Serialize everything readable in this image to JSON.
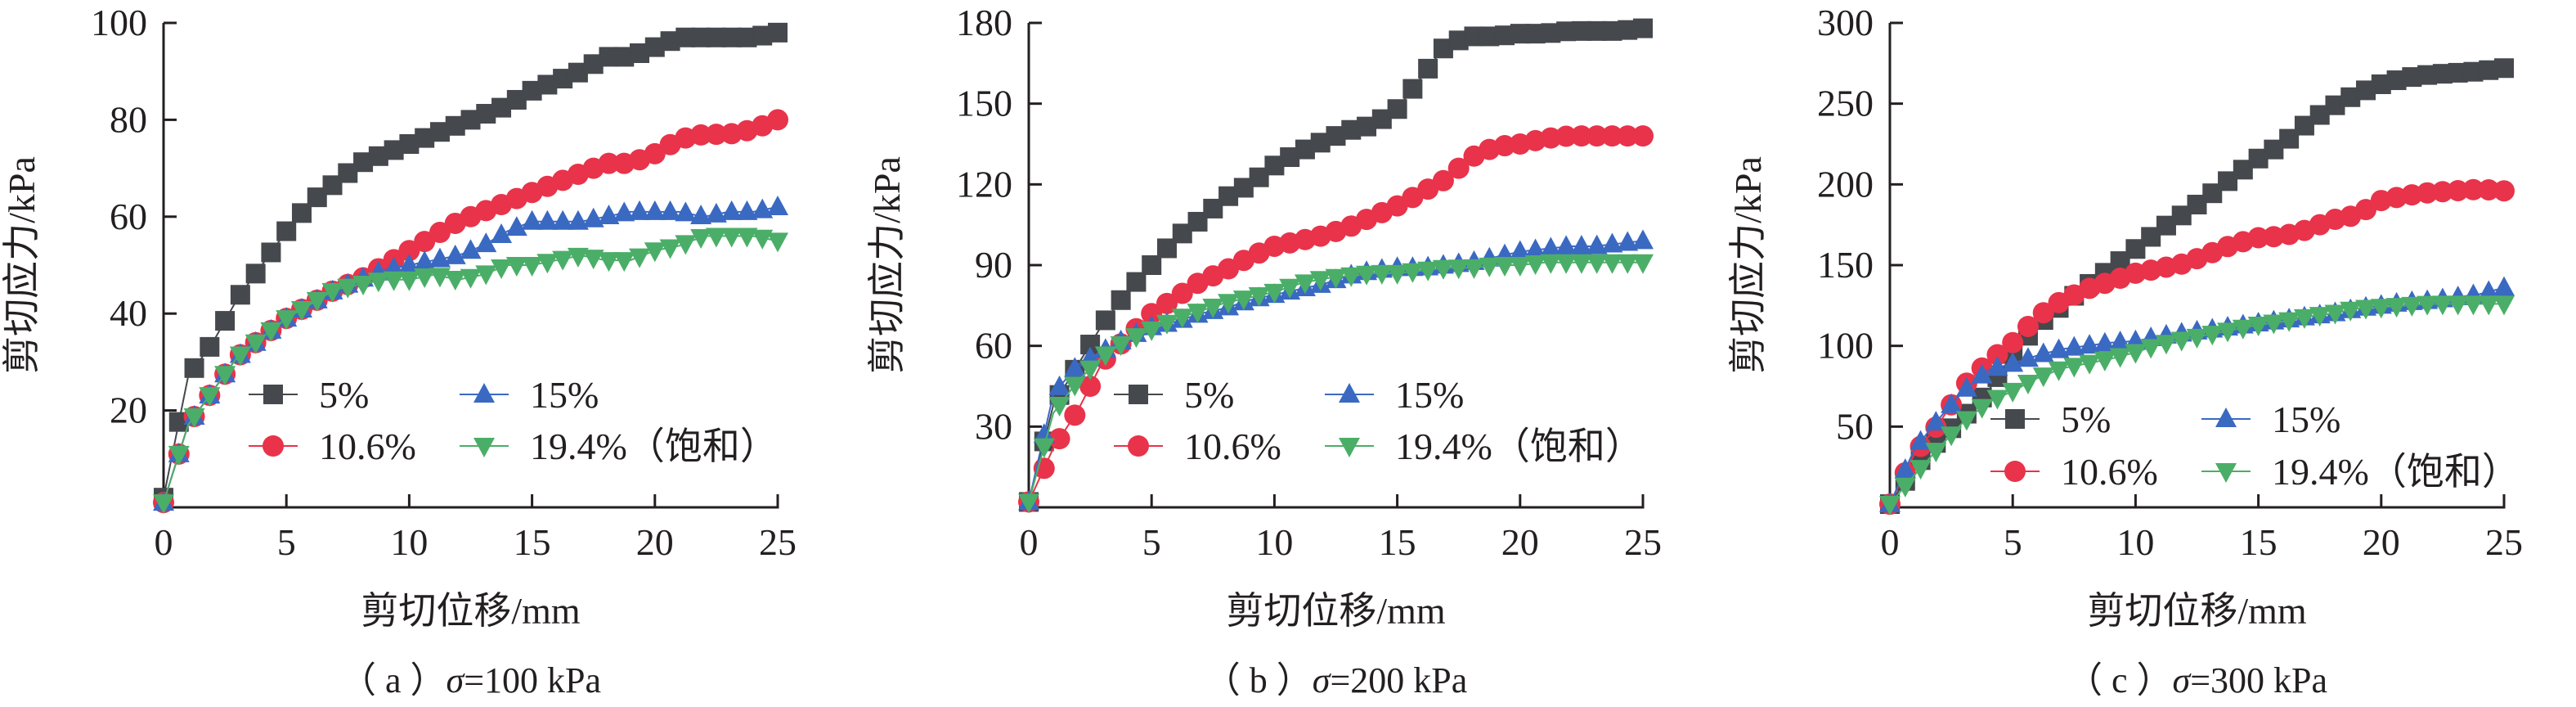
{
  "colors": {
    "s5": "#45484c",
    "s10": "#e8334a",
    "s15": "#3a69c2",
    "s19": "#4bae68",
    "axis": "#231f20"
  },
  "chart_data": [
    {
      "type": "line",
      "caption_prefix": "（ a ）",
      "caption_sigma": "σ",
      "caption_suffix": "=100 kPa",
      "xlabel": "剪切位移/mm",
      "ylabel": "剪切应力/kPa",
      "xlim": [
        0,
        25
      ],
      "ylim": [
        0,
        100
      ],
      "xticks": [
        "0",
        "5",
        "10",
        "15",
        "20",
        "25"
      ],
      "yticks": [
        "20",
        "40",
        "60",
        "80",
        "100"
      ],
      "grid": false,
      "legend": "center-bottom inside, 2 columns",
      "x": [
        0,
        1,
        2,
        3,
        4,
        5,
        6,
        7,
        8,
        9,
        10,
        11,
        12,
        13,
        14,
        15,
        16,
        17,
        18,
        19,
        20,
        21,
        22,
        23,
        24,
        25
      ],
      "series": [
        {
          "name": "5%",
          "marker": "square",
          "values": [
            2,
            27,
            34,
            43,
            50,
            57,
            63,
            67,
            71,
            73,
            75,
            77,
            79,
            81,
            83,
            86,
            88,
            90,
            93,
            93,
            95,
            97,
            97,
            97,
            97,
            98
          ]
        },
        {
          "name": "10.6%",
          "marker": "circle",
          "values": [
            1,
            17,
            24,
            31,
            35,
            39,
            42,
            45,
            47,
            50,
            53,
            56,
            59,
            61,
            63,
            65,
            67,
            69,
            71,
            71,
            73,
            76,
            77,
            77,
            78,
            80
          ]
        },
        {
          "name": "15%",
          "marker": "triangle-up",
          "values": [
            1,
            17,
            24,
            31,
            35,
            39,
            42,
            45,
            47,
            49,
            50,
            51,
            52,
            54,
            57,
            59,
            59,
            59,
            60,
            61,
            61,
            61,
            60,
            61,
            61,
            62
          ]
        },
        {
          "name": "19.4%（饱和）",
          "marker": "triangle-down",
          "values": [
            1,
            17,
            24,
            31,
            35,
            39,
            42,
            45,
            46,
            47,
            47,
            48,
            47,
            48,
            50,
            50,
            51,
            52,
            51,
            51,
            53,
            54,
            56,
            56,
            56,
            55
          ]
        }
      ]
    },
    {
      "type": "line",
      "caption_prefix": "（ b ）",
      "caption_sigma": "σ",
      "caption_suffix": "=200 kPa",
      "xlabel": "剪切位移/mm",
      "ylabel": "剪切应力/kPa",
      "xlim": [
        0,
        25
      ],
      "ylim": [
        0,
        180
      ],
      "xticks": [
        "0",
        "5",
        "10",
        "15",
        "20",
        "25"
      ],
      "yticks": [
        "30",
        "60",
        "90",
        "120",
        "150",
        "180"
      ],
      "grid": false,
      "legend": "center-bottom inside, 2 columns",
      "x": [
        0,
        1,
        2,
        3,
        4,
        5,
        6,
        7,
        8,
        9,
        10,
        11,
        12,
        13,
        14,
        15,
        16,
        17,
        18,
        19,
        20,
        21,
        22,
        23,
        24,
        25
      ],
      "series": [
        {
          "name": "5%",
          "marker": "square",
          "values": [
            2,
            38,
            53,
            68,
            80,
            90,
            100,
            107,
            115,
            120,
            127,
            132,
            136,
            140,
            142,
            148,
            160,
            172,
            175,
            175,
            176,
            176,
            177,
            177,
            177,
            178
          ]
        },
        {
          "name": "10.6%",
          "marker": "circle",
          "values": [
            2,
            22,
            36,
            54,
            63,
            72,
            78,
            84,
            88,
            93,
            97,
            99,
            101,
            104,
            108,
            112,
            117,
            122,
            130,
            134,
            135,
            137,
            138,
            138,
            138,
            138
          ]
        },
        {
          "name": "15%",
          "marker": "triangle-up",
          "values": [
            2,
            42,
            53,
            58,
            63,
            67,
            69,
            72,
            74,
            77,
            79,
            81,
            83,
            86,
            88,
            89,
            89,
            90,
            91,
            93,
            95,
            96,
            97,
            97,
            98,
            99
          ]
        },
        {
          "name": "19.4%（饱和）",
          "marker": "triangle-down",
          "values": [
            2,
            35,
            47,
            56,
            62,
            66,
            70,
            73,
            76,
            78,
            80,
            83,
            85,
            86,
            87,
            87,
            88,
            89,
            89,
            90,
            90,
            91,
            91,
            91,
            91,
            91
          ]
        }
      ]
    },
    {
      "type": "line",
      "caption_prefix": "（ c ）",
      "caption_sigma": "σ",
      "caption_suffix": "=300 kPa",
      "xlabel": "剪切位移/mm",
      "ylabel": "剪切应力/kPa",
      "xlim": [
        0,
        25
      ],
      "ylim": [
        0,
        300
      ],
      "xticks": [
        "0",
        "5",
        "10",
        "15",
        "20",
        "25"
      ],
      "yticks": [
        "50",
        "100",
        "150",
        "200",
        "250",
        "300"
      ],
      "grid": false,
      "legend": "center-bottom inside, 2 columns",
      "x": [
        0,
        1,
        2,
        3,
        4,
        5,
        6,
        7,
        8,
        9,
        10,
        11,
        12,
        13,
        14,
        15,
        16,
        17,
        18,
        19,
        20,
        21,
        22,
        23,
        24,
        25
      ],
      "series": [
        {
          "name": "5%",
          "marker": "square",
          "values": [
            2,
            25,
            42,
            56,
            72,
            95,
            113,
            125,
            137,
            148,
            160,
            172,
            182,
            193,
            205,
            216,
            225,
            238,
            248,
            256,
            262,
            266,
            268,
            269,
            270,
            272
          ]
        },
        {
          "name": "10.6%",
          "marker": "circle",
          "values": [
            2,
            33,
            52,
            75,
            90,
            102,
            118,
            128,
            135,
            140,
            145,
            148,
            151,
            157,
            163,
            167,
            168,
            172,
            178,
            181,
            190,
            193,
            195,
            196,
            197,
            196
          ]
        },
        {
          "name": "15%",
          "marker": "triangle-up",
          "values": [
            2,
            36,
            55,
            72,
            85,
            89,
            94,
            98,
            100,
            102,
            103,
            106,
            108,
            110,
            112,
            114,
            116,
            118,
            120,
            123,
            125,
            127,
            128,
            130,
            132,
            136
          ]
        },
        {
          "name": "19.4%（饱和）",
          "marker": "triangle-down",
          "values": [
            2,
            20,
            37,
            53,
            65,
            72,
            80,
            86,
            89,
            92,
            96,
            101,
            104,
            107,
            110,
            113,
            115,
            118,
            120,
            123,
            124,
            125,
            126,
            126,
            126,
            126
          ]
        }
      ]
    }
  ]
}
